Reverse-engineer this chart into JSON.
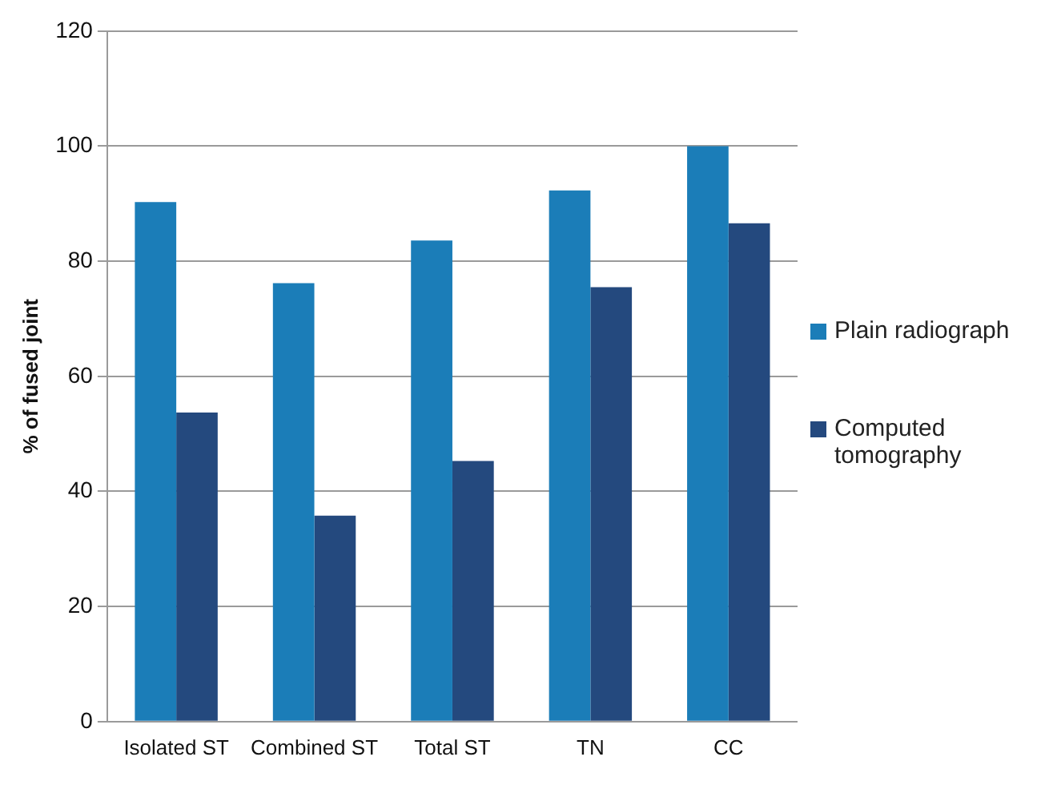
{
  "chart_data": {
    "type": "bar",
    "ylabel": "% of fused joint",
    "categories": [
      "Isolated ST",
      "Combined ST",
      "Total ST",
      "TN",
      "CC"
    ],
    "series": [
      {
        "name": "Plain radiograph",
        "color": "#1b7db8",
        "values": [
          90.3,
          76.2,
          83.6,
          92.3,
          100
        ]
      },
      {
        "name": "Computed tomography",
        "color": "#24497e",
        "values": [
          53.7,
          35.8,
          45.3,
          75.5,
          86.6
        ]
      }
    ],
    "ylim": [
      0,
      120
    ],
    "yticks": [
      0,
      20,
      40,
      60,
      80,
      100,
      120
    ],
    "grid": "y",
    "legend": "right"
  }
}
